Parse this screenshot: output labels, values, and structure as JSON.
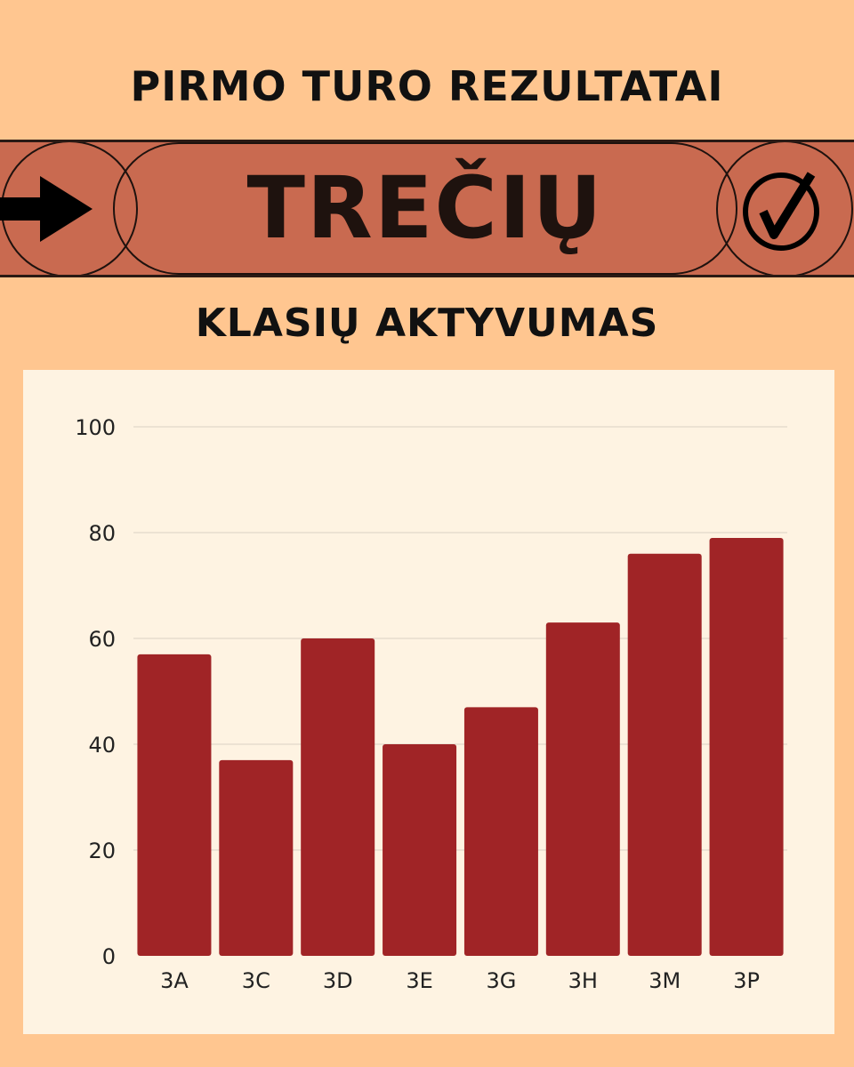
{
  "header": {
    "title": "PIRMO TURO REZULTATAI",
    "band_label": "TREČIŲ",
    "subtitle": "KLASIŲ AKTYVUMAS",
    "left_icon": "arrow-right-icon",
    "right_icon": "check-circle-icon"
  },
  "colors": {
    "background": "#FFC690",
    "band": "#C96A50",
    "panel": "#FEF3E2",
    "bar": "#A02426"
  },
  "chart_data": {
    "type": "bar",
    "title": "",
    "xlabel": "",
    "ylabel": "",
    "categories": [
      "3A",
      "3C",
      "3D",
      "3E",
      "3G",
      "3H",
      "3M",
      "3P"
    ],
    "values": [
      57,
      37,
      60,
      40,
      47,
      63,
      76,
      79
    ],
    "ylim": [
      0,
      100
    ],
    "yticks": [
      0,
      20,
      40,
      60,
      80,
      100
    ],
    "grid": true,
    "legend": "none"
  }
}
